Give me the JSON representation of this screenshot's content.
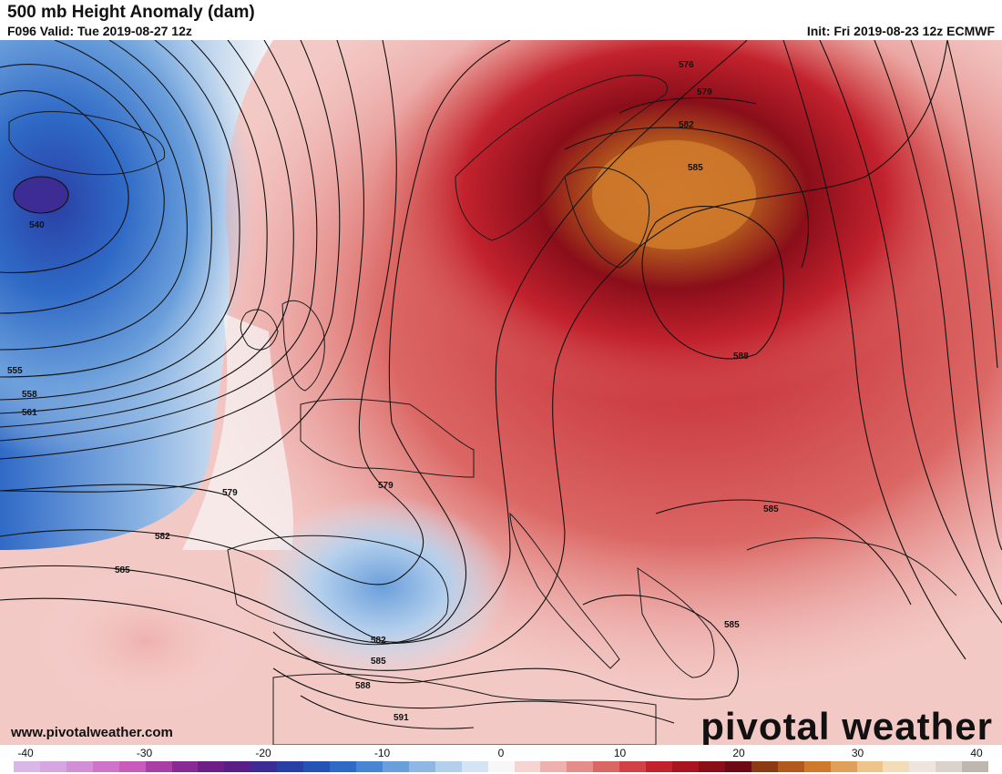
{
  "header": {
    "title": "500 mb Height Anomaly (dam)",
    "valid": "F096 Valid: Tue 2019-08-27 12z",
    "init": "Init: Fri 2019-08-23 12z ECMWF"
  },
  "watermark": {
    "brand": "pivotal weather",
    "url": "www.pivotalweather.com"
  },
  "contour_labels": [
    "540",
    "555",
    "558",
    "561",
    "576",
    "579",
    "582",
    "585",
    "588",
    "579",
    "582",
    "585",
    "591",
    "582",
    "585",
    "588",
    "585",
    "585",
    "579"
  ],
  "colorbar": {
    "ticks": [
      "-40",
      "-30",
      "-20",
      "-10",
      "0",
      "10",
      "20",
      "30",
      "40"
    ],
    "colors": [
      "#d9b8e8",
      "#d6a6e0",
      "#d28fd6",
      "#cf74c9",
      "#c85bbb",
      "#a83ea6",
      "#882a93",
      "#6e1f85",
      "#5a1f86",
      "#3d2c93",
      "#2a3fa6",
      "#2452b5",
      "#2f6ac6",
      "#4885d2",
      "#6b9fdb",
      "#8fb7e4",
      "#b3cfec",
      "#d4e4f4",
      "#f7f7f7",
      "#f6d4d2",
      "#efb1ad",
      "#e58d89",
      "#db6764",
      "#d04245",
      "#c2222d",
      "#a81521",
      "#8a0e1a",
      "#6e0a14",
      "#8c3a14",
      "#b25a1d",
      "#cf7a2b",
      "#e0a05a",
      "#ecc48c",
      "#f3dcb8",
      "#eee5dc",
      "#d9d3cc",
      "#bdb7b0"
    ]
  }
}
